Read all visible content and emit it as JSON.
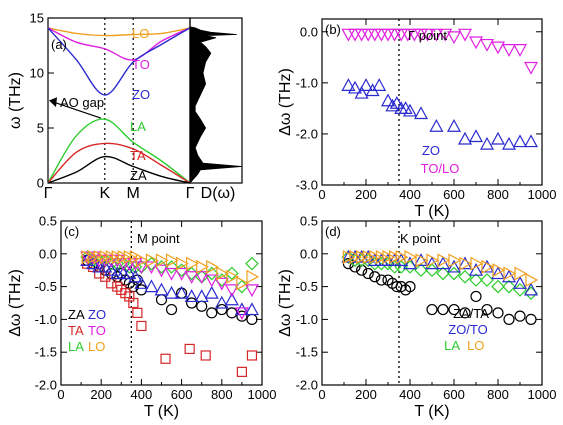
{
  "colors": {
    "black": "#000000",
    "red": "#d62728",
    "green": "#2ecc2e",
    "blue": "#2a2ad0",
    "magenta": "#e020e0",
    "orange": "#f0a020"
  },
  "chart_data": [
    {
      "id": "a",
      "type": "line",
      "panel_label": "(a)",
      "ylabel": "ω (THz)",
      "ylim": [
        0,
        15
      ],
      "yticks": [
        "0",
        "5",
        "10",
        "15"
      ],
      "xticks": [
        "Γ",
        "K",
        "M",
        "Γ"
      ],
      "xtick_positions": [
        0,
        1,
        1.5,
        2.5
      ],
      "dotted_at": [
        1,
        1.5
      ],
      "annotation": "AO gap",
      "gap_arrow_from_to": [
        7.0,
        5.5
      ],
      "series": [
        {
          "name": "LO",
          "color": "orange",
          "x": [
            0,
            0.5,
            1,
            1.5,
            2,
            2.5
          ],
          "y": [
            14.1,
            13.6,
            13.4,
            13.5,
            13.6,
            14.1
          ]
        },
        {
          "name": "TO",
          "color": "magenta",
          "x": [
            0,
            0.5,
            1,
            1.5,
            2,
            2.5
          ],
          "y": [
            14.1,
            12.8,
            12.2,
            11.2,
            12.9,
            14.1
          ]
        },
        {
          "name": "ZO",
          "color": "blue",
          "x": [
            0,
            0.5,
            1,
            1.5,
            2,
            2.5
          ],
          "y": [
            14.1,
            11.2,
            8.0,
            11.0,
            12.6,
            14.1
          ]
        },
        {
          "name": "LA",
          "color": "green",
          "x": [
            0,
            0.5,
            1,
            1.5,
            2,
            2.5
          ],
          "y": [
            0,
            4.3,
            5.8,
            3.7,
            2.0,
            0
          ]
        },
        {
          "name": "TA",
          "color": "red",
          "x": [
            0,
            0.5,
            1,
            1.5,
            2,
            2.5
          ],
          "y": [
            0,
            2.8,
            3.6,
            3.1,
            1.6,
            0
          ]
        },
        {
          "name": "ZA",
          "color": "black",
          "x": [
            0,
            0.5,
            1,
            1.5,
            2,
            2.5
          ],
          "y": [
            0,
            1.0,
            2.4,
            1.5,
            0.6,
            0
          ]
        }
      ]
    },
    {
      "id": "dos",
      "type": "area",
      "xlabel": "D(ω)",
      "ylim": [
        0,
        15
      ],
      "x": [
        0,
        0.15,
        0.2,
        1.0,
        0.25,
        0.15,
        0.1,
        0.15,
        0.2,
        0.3,
        0.2,
        0.1,
        0.1,
        0.2,
        0.3,
        0.25,
        0.3,
        0.4,
        0.3,
        0.2,
        0.5,
        0.3,
        0.9,
        0.4,
        0.2,
        0.1,
        0
      ],
      "y": [
        0,
        0.8,
        1.2,
        1.5,
        1.8,
        2.5,
        3.2,
        3.7,
        4.2,
        5.0,
        5.8,
        6.5,
        7.0,
        8.0,
        9.0,
        10.0,
        11.0,
        11.8,
        12.4,
        12.8,
        13.2,
        13.4,
        13.5,
        13.7,
        13.9,
        14.1,
        14.2
      ]
    },
    {
      "id": "b",
      "type": "scatter",
      "panel_label": "(b)",
      "title": "Γ point",
      "xlabel": "T (K)",
      "ylabel": "Δω (THz)",
      "xlim": [
        0,
        1000
      ],
      "ylim": [
        -3.0,
        0.25
      ],
      "xticks": [
        "0",
        "200",
        "400",
        "600",
        "800",
        "1000"
      ],
      "yticks": [
        "0.0",
        "-1.0",
        "-2.0",
        "-3.0"
      ],
      "dotted_at": 350,
      "legend": [
        {
          "label": "ZO",
          "color": "blue"
        },
        {
          "label": "TO/LO",
          "color": "magenta"
        }
      ],
      "series": [
        {
          "name": "ZO",
          "color": "blue",
          "marker": "triangle-up",
          "x": [
            120,
            150,
            180,
            200,
            230,
            260,
            300,
            320,
            340,
            360,
            380,
            400,
            450,
            520,
            600,
            650,
            700,
            750,
            800,
            850,
            900,
            950
          ],
          "y": [
            -1.05,
            -1.1,
            -1.2,
            -1.05,
            -1.15,
            -1.05,
            -1.35,
            -1.45,
            -1.4,
            -1.5,
            -1.5,
            -1.55,
            -1.6,
            -1.85,
            -1.85,
            -2.1,
            -2.05,
            -2.2,
            -2.1,
            -2.2,
            -2.15,
            -2.15
          ]
        },
        {
          "name": "TO/LO",
          "color": "magenta",
          "marker": "triangle-down",
          "x": [
            120,
            150,
            180,
            210,
            240,
            270,
            300,
            330,
            360,
            390,
            420,
            450,
            480,
            520,
            560,
            600,
            650,
            700,
            750,
            800,
            850,
            900,
            950
          ],
          "y": [
            -0.05,
            -0.05,
            -0.05,
            -0.05,
            -0.05,
            -0.05,
            -0.05,
            -0.05,
            -0.05,
            -0.05,
            -0.05,
            -0.05,
            -0.05,
            -0.05,
            -0.05,
            -0.1,
            -0.05,
            -0.2,
            -0.25,
            -0.3,
            -0.35,
            -0.35,
            -0.7
          ]
        }
      ]
    },
    {
      "id": "c",
      "type": "scatter",
      "panel_label": "(c)",
      "title": "M point",
      "xlabel": "T (K)",
      "ylabel": "Δω (THz)",
      "xlim": [
        0,
        1000
      ],
      "ylim": [
        -2.0,
        0.5
      ],
      "xticks": [
        "0",
        "200",
        "400",
        "600",
        "800",
        "1000"
      ],
      "yticks": [
        "0.5",
        "0.0",
        "-0.5",
        "-1.0",
        "-1.5",
        "-2.0"
      ],
      "dotted_at": 350,
      "legend": [
        {
          "label": "ZA",
          "color": "black"
        },
        {
          "label": "ZO",
          "color": "blue"
        },
        {
          "label": "TA",
          "color": "red"
        },
        {
          "label": "TO",
          "color": "magenta"
        },
        {
          "label": "LA",
          "color": "green"
        },
        {
          "label": "LO",
          "color": "orange"
        }
      ],
      "series": [
        {
          "name": "ZA",
          "color": "black",
          "marker": "circle",
          "x": [
            130,
            160,
            190,
            220,
            250,
            280,
            300,
            320,
            340,
            360,
            380,
            400,
            500,
            550,
            600,
            650,
            700,
            750,
            800,
            850,
            900,
            950
          ],
          "y": [
            -0.1,
            -0.15,
            -0.2,
            -0.25,
            -0.3,
            -0.35,
            -0.3,
            -0.4,
            -0.45,
            -0.5,
            -0.4,
            -0.55,
            -0.7,
            -0.85,
            -0.6,
            -0.75,
            -0.8,
            -0.9,
            -0.85,
            -0.9,
            -0.95,
            -1.0
          ]
        },
        {
          "name": "TA",
          "color": "red",
          "marker": "square",
          "x": [
            130,
            160,
            190,
            220,
            250,
            280,
            300,
            320,
            340,
            360,
            380,
            400,
            520,
            640,
            720,
            900,
            950
          ],
          "y": [
            -0.15,
            -0.2,
            -0.3,
            -0.35,
            -0.45,
            -0.5,
            -0.55,
            -0.6,
            -0.65,
            -0.75,
            -0.9,
            -1.1,
            -1.6,
            -1.45,
            -1.55,
            -1.8,
            -1.55
          ]
        },
        {
          "name": "LA",
          "color": "green",
          "marker": "diamond",
          "x": [
            130,
            160,
            190,
            220,
            250,
            280,
            310,
            340,
            370,
            400,
            450,
            500,
            550,
            600,
            650,
            700,
            750,
            800,
            850,
            900,
            950
          ],
          "y": [
            -0.05,
            -0.1,
            -0.1,
            -0.1,
            -0.15,
            -0.15,
            -0.15,
            -0.2,
            -0.2,
            -0.2,
            -0.15,
            -0.2,
            -0.2,
            -0.25,
            -0.3,
            -0.35,
            -0.3,
            -0.4,
            -0.3,
            -0.5,
            -0.15
          ]
        },
        {
          "name": "ZO",
          "color": "blue",
          "marker": "triangle-up",
          "x": [
            130,
            160,
            190,
            220,
            250,
            280,
            310,
            340,
            370,
            400,
            450,
            500,
            550,
            600,
            650,
            700,
            750,
            800,
            850,
            900,
            950
          ],
          "y": [
            -0.1,
            -0.15,
            -0.2,
            -0.2,
            -0.25,
            -0.3,
            -0.3,
            -0.3,
            -0.35,
            -0.45,
            -0.5,
            -0.55,
            -0.6,
            -0.6,
            -0.65,
            -0.65,
            -0.6,
            -0.75,
            -0.7,
            -0.85,
            -0.85
          ]
        },
        {
          "name": "TO",
          "color": "magenta",
          "marker": "triangle-down",
          "x": [
            130,
            160,
            190,
            220,
            250,
            280,
            310,
            340,
            370,
            400,
            450,
            500,
            550,
            600,
            650,
            700,
            750,
            800,
            850,
            900,
            950
          ],
          "y": [
            -0.05,
            -0.05,
            -0.1,
            -0.1,
            -0.1,
            -0.1,
            -0.15,
            -0.15,
            -0.15,
            -0.2,
            -0.2,
            -0.25,
            -0.3,
            -0.3,
            -0.35,
            -0.35,
            -0.4,
            -0.45,
            -0.55,
            -0.9,
            -0.55
          ]
        },
        {
          "name": "LO",
          "color": "orange",
          "marker": "triangle-right",
          "x": [
            130,
            160,
            190,
            220,
            250,
            280,
            310,
            340,
            370,
            400,
            450,
            500,
            550,
            600,
            650,
            700,
            750,
            800,
            850,
            900,
            950
          ],
          "y": [
            -0.05,
            -0.05,
            -0.05,
            -0.05,
            -0.05,
            -0.05,
            -0.05,
            -0.05,
            -0.05,
            -0.1,
            -0.1,
            -0.1,
            -0.1,
            -0.15,
            -0.15,
            -0.2,
            -0.2,
            -0.3,
            -0.35,
            -0.45,
            -0.35
          ]
        }
      ]
    },
    {
      "id": "d",
      "type": "scatter",
      "panel_label": "(d)",
      "title": "K point",
      "xlabel": "T (K)",
      "ylabel": "Δω (THz)",
      "xlim": [
        0,
        1000
      ],
      "ylim": [
        -2.0,
        0.5
      ],
      "xticks": [
        "0",
        "200",
        "400",
        "600",
        "800",
        "1000"
      ],
      "yticks": [
        "0.5",
        "0.0",
        "-0.5",
        "-1.0",
        "-1.5",
        "-2.0"
      ],
      "dotted_at": 350,
      "legend": [
        {
          "label": "ZA/TA",
          "color": "black"
        },
        {
          "label": "ZO/TO",
          "color": "blue"
        },
        {
          "label": "LA",
          "color": "green"
        },
        {
          "label": "LO",
          "color": "orange"
        }
      ],
      "series": [
        {
          "name": "ZA/TA",
          "color": "black",
          "marker": "circle",
          "x": [
            120,
            150,
            180,
            210,
            240,
            270,
            300,
            320,
            340,
            360,
            380,
            400,
            500,
            550,
            600,
            650,
            700,
            750,
            800,
            850,
            900,
            950
          ],
          "y": [
            -0.15,
            -0.2,
            -0.25,
            -0.3,
            -0.35,
            -0.4,
            -0.4,
            -0.45,
            -0.5,
            -0.5,
            -0.55,
            -0.5,
            -0.85,
            -0.85,
            -0.85,
            -0.9,
            -0.65,
            -0.85,
            -0.9,
            -1.0,
            -0.95,
            -1.0
          ]
        },
        {
          "name": "LA",
          "color": "green",
          "marker": "diamond",
          "x": [
            120,
            150,
            180,
            210,
            240,
            270,
            300,
            330,
            360,
            400,
            450,
            500,
            550,
            600,
            650,
            700,
            750,
            800,
            850,
            900,
            950
          ],
          "y": [
            -0.05,
            -0.1,
            -0.1,
            -0.1,
            -0.15,
            -0.15,
            -0.15,
            -0.2,
            -0.2,
            -0.2,
            -0.25,
            -0.25,
            -0.3,
            -0.3,
            -0.35,
            -0.4,
            -0.4,
            -0.5,
            -0.5,
            -0.55,
            -0.6
          ]
        },
        {
          "name": "ZO/TO",
          "color": "blue",
          "marker": "triangle-up",
          "x": [
            120,
            150,
            180,
            210,
            240,
            270,
            300,
            330,
            360,
            400,
            450,
            500,
            550,
            600,
            650,
            700,
            750,
            800,
            850,
            900,
            950
          ],
          "y": [
            -0.05,
            -0.05,
            -0.05,
            -0.05,
            -0.1,
            -0.1,
            -0.1,
            -0.1,
            -0.1,
            -0.15,
            -0.1,
            -0.15,
            -0.15,
            -0.2,
            -0.15,
            -0.25,
            -0.2,
            -0.3,
            -0.35,
            -0.45,
            -0.55
          ]
        },
        {
          "name": "LO",
          "color": "orange",
          "marker": "triangle-right",
          "x": [
            120,
            150,
            180,
            210,
            240,
            270,
            300,
            330,
            360,
            400,
            450,
            500,
            550,
            600,
            650,
            700,
            750,
            800,
            850,
            900,
            950
          ],
          "y": [
            -0.05,
            -0.05,
            -0.05,
            -0.05,
            -0.05,
            -0.05,
            -0.05,
            -0.05,
            -0.05,
            -0.05,
            -0.1,
            -0.1,
            -0.1,
            -0.1,
            -0.15,
            -0.15,
            -0.2,
            -0.25,
            -0.3,
            -0.3,
            -0.4
          ]
        }
      ]
    }
  ]
}
